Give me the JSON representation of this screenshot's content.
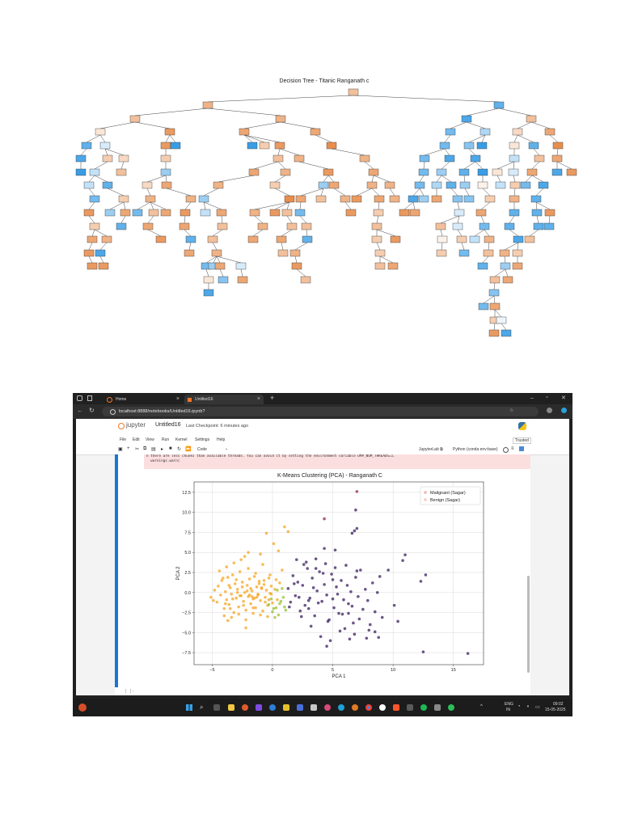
{
  "tree": {
    "title": "Decision Tree - Titanic Ranganath c"
  },
  "browser": {
    "tabs": [
      {
        "label": "Home"
      },
      {
        "label": "Untitled16"
      }
    ],
    "new_tab": "+",
    "url": "localhost:8888/notebooks/Untitled16.ipynb?"
  },
  "jupyter": {
    "logo_text": "jupyter",
    "notebook_name": "Untitled16",
    "checkpoint": "Last Checkpoint: 6 minutes ago",
    "menu": [
      "File",
      "Edit",
      "View",
      "Run",
      "Kernel",
      "Settings",
      "Help"
    ],
    "trusted": "Trusted",
    "cell_type": "Code",
    "jupyterlab_link": "JupyterLab ⧉",
    "kernel": "Python (conda env:base)",
    "warning_lines": [
      "n there are less chunks than available threads. You can avoid it by setting the environment variable OMP_NUM_THREADS=1.",
      "  warnings.warn("
    ],
    "next_prompt": "[ ]:"
  },
  "taskbar": {
    "lang_top": "ENG",
    "lang_bottom": "IN",
    "time": "09:02",
    "date": "15-05-2025"
  },
  "colors": {
    "orange_node": "#e58139",
    "blue_node": "#399de5",
    "cluster_yellow": "#f5a623",
    "cluster_purple": "#3b1f5e",
    "cluster_green": "#9bbf3b",
    "jupyter_orange": "#f37726",
    "python_blue": "#3572a5"
  },
  "chart_data": {
    "type": "scatter",
    "title": "K-Means Clustering (PCA) - Ranganath C",
    "xlabel": "PCA 1",
    "ylabel": "PCA 2",
    "xlim": [
      -6.5,
      17.5
    ],
    "ylim": [
      -9.0,
      13.8
    ],
    "xticks": [
      -5,
      0,
      5,
      10,
      15
    ],
    "xtick_labels": [
      "−5",
      "0",
      "5",
      "10",
      "15"
    ],
    "yticks": [
      -7.5,
      -5.0,
      -2.5,
      0.0,
      2.5,
      5.0,
      7.5,
      10.0,
      12.5
    ],
    "ytick_labels": [
      "−7.5",
      "−5.0",
      "−2.5",
      "0.0",
      "2.5",
      "5.0",
      "7.5",
      "10.0",
      "12.5"
    ],
    "grid": true,
    "legend_position": "top-right",
    "legend": [
      {
        "label": "Malignant (Sagar)",
        "color": "#f2b6a8"
      },
      {
        "label": "Benign (Sagar)",
        "color": "#f8c9bd"
      }
    ],
    "series": [
      {
        "color": "#f5a623",
        "x": [
          -5.1,
          -4.8,
          -4.6,
          -4.5,
          -4.3,
          -4.2,
          -4.0,
          -3.9,
          -3.8,
          -3.7,
          -3.6,
          -3.5,
          -3.4,
          -3.3,
          -3.2,
          -3.1,
          -3.0,
          -2.9,
          -2.8,
          -2.7,
          -2.6,
          -2.5,
          -2.4,
          -2.3,
          -2.2,
          -2.1,
          -2.0,
          -1.9,
          -1.8,
          -1.7,
          -1.6,
          -1.5,
          -1.4,
          -1.3,
          -1.2,
          -1.1,
          -1.0,
          -0.9,
          -0.8,
          -0.7,
          -0.6,
          -0.5,
          -0.4,
          -0.3,
          -0.2,
          -0.1,
          0.0,
          0.2,
          0.4,
          0.6,
          -4.4,
          -3.8,
          -3.2,
          -2.6,
          -2.0,
          -1.4,
          -0.8,
          -0.2,
          -4.0,
          -3.4,
          -2.8,
          -2.2,
          -1.6,
          -1.0,
          -0.4,
          -3.6,
          -3.0,
          -2.4,
          -1.8,
          -1.2,
          -0.6,
          -2.7,
          -2.1,
          -1.5,
          -0.9,
          -3.9,
          -3.3,
          -2.5,
          -1.7,
          -1.1,
          -0.3,
          0.3,
          -1.0,
          -0.5,
          0.1,
          0.5,
          1.0,
          1.3,
          0.8,
          -4.9,
          -3.5,
          -2.9,
          -1.9,
          -1.3,
          -0.7,
          -2.3,
          -2.0,
          -1.6,
          -0.1,
          -4.1,
          -3.7,
          -2.2
        ],
        "y": [
          -0.6,
          0.3,
          -1.2,
          0.8,
          -0.3,
          1.5,
          -2.0,
          0.1,
          -0.9,
          1.9,
          -1.5,
          0.6,
          -0.2,
          2.2,
          -2.5,
          1.1,
          -0.7,
          0.4,
          -1.8,
          2.6,
          -0.4,
          1.3,
          -1.1,
          0.0,
          -2.2,
          0.9,
          -0.5,
          1.7,
          -1.4,
          0.2,
          -0.8,
          2.0,
          -1.9,
          0.7,
          -0.3,
          1.4,
          -1.0,
          0.5,
          -2.3,
          1.0,
          -0.6,
          0.3,
          -1.6,
          1.8,
          -0.1,
          0.8,
          -1.3,
          0.4,
          -0.9,
          1.2,
          2.7,
          3.2,
          3.7,
          4.1,
          3.0,
          2.4,
          3.5,
          2.2,
          -2.9,
          -3.1,
          -2.7,
          -3.4,
          -2.6,
          -2.8,
          -3.0,
          0.9,
          1.6,
          -1.6,
          0.5,
          -0.2,
          -1.2,
          -0.4,
          0.2,
          -0.7,
          0.6,
          -1.4,
          -0.8,
          0.7,
          -0.5,
          1.1,
          -0.9,
          1.6,
          4.8,
          7.4,
          6.1,
          5.2,
          8.2,
          7.6,
          2.8,
          -1.0,
          -2.0,
          0.0,
          -0.3,
          -0.6,
          1.5,
          4.5,
          5.0,
          -1.9,
          -0.2,
          1.8,
          -3.5,
          -4.4
        ]
      },
      {
        "color": "#9bbf3b",
        "x": [
          -0.3,
          0.0,
          0.3,
          0.5,
          0.7,
          0.9,
          1.1,
          0.2,
          0.4,
          -0.1,
          0.6,
          0.8,
          1.0,
          0.1
        ],
        "y": [
          -1.5,
          -2.4,
          -1.9,
          -2.8,
          -1.1,
          -0.6,
          -2.2,
          -3.1,
          0.3,
          -0.8,
          -1.4,
          0.5,
          -1.8,
          -2.0
        ]
      },
      {
        "color": "#3b1f5e",
        "x": [
          1.3,
          1.5,
          1.7,
          1.9,
          2.1,
          2.3,
          2.5,
          2.7,
          2.9,
          3.1,
          3.3,
          3.5,
          3.7,
          3.9,
          4.1,
          4.3,
          4.5,
          4.7,
          4.9,
          5.1,
          5.3,
          5.5,
          5.7,
          5.9,
          6.1,
          6.3,
          6.5,
          6.7,
          6.9,
          7.1,
          7.3,
          7.5,
          7.7,
          7.9,
          8.1,
          8.3,
          8.5,
          8.7,
          8.9,
          9.1,
          1.4,
          1.8,
          2.2,
          2.6,
          3.0,
          3.4,
          3.8,
          4.2,
          4.6,
          5.0,
          5.4,
          5.8,
          6.2,
          6.6,
          7.0,
          2.0,
          2.8,
          3.6,
          4.4,
          5.2,
          6.0,
          6.8,
          3.2,
          4.0,
          4.8,
          5.6,
          6.4,
          7.2,
          8.0,
          2.4,
          3.0,
          4.5,
          5.0,
          6.3,
          8.8,
          9.6,
          10.1,
          10.4,
          10.8,
          11.0,
          12.5,
          12.7,
          12.3,
          16.2,
          6.6,
          6.8,
          7.0,
          6.9,
          5.2,
          4.3,
          3.6,
          7.8,
          8.5
        ],
        "y": [
          0.5,
          -1.2,
          2.1,
          -0.4,
          1.3,
          -2.3,
          0.9,
          -1.6,
          3.0,
          -0.7,
          1.8,
          -2.9,
          0.2,
          2.6,
          -1.1,
          1.0,
          -0.3,
          -3.4,
          2.3,
          -1.9,
          0.7,
          -2.6,
          1.5,
          -0.9,
          3.4,
          -1.4,
          0.1,
          -3.8,
          1.9,
          -0.5,
          2.8,
          -2.1,
          0.4,
          -1.0,
          -4.0,
          1.2,
          -2.4,
          0.0,
          2.0,
          -3.1,
          -1.8,
          1.1,
          -0.6,
          3.5,
          -2.0,
          0.6,
          -1.3,
          2.4,
          -3.6,
          1.6,
          -0.2,
          -2.7,
          0.9,
          -1.7,
          2.7,
          4.1,
          3.8,
          4.2,
          3.6,
          3.1,
          -4.5,
          -5.2,
          -4.2,
          -5.5,
          -6.0,
          -4.8,
          -5.8,
          -3.3,
          -4.7,
          -3.0,
          -1.0,
          -6.7,
          -0.8,
          -2.6,
          -5.6,
          2.8,
          -1.6,
          -3.6,
          4.0,
          4.7,
          -7.4,
          2.2,
          1.4,
          -7.6,
          7.4,
          7.7,
          8.0,
          10.3,
          5.3,
          5.5,
          3.0,
          -5.7,
          -4.9
        ]
      },
      {
        "color": "#8b2a4a",
        "x": [
          4.3,
          7.0
        ],
        "y": [
          9.2,
          12.6
        ]
      }
    ]
  }
}
